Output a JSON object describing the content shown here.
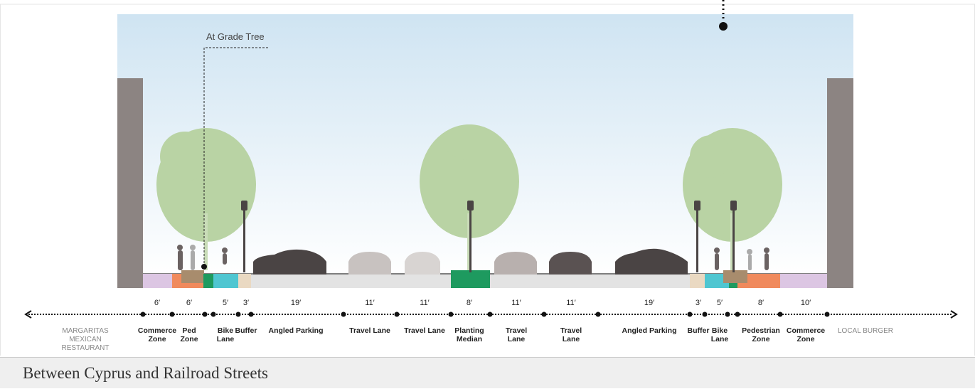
{
  "callout": "At Grade Tree",
  "segments": [
    {
      "width": "6′",
      "label": "Commerce Zone"
    },
    {
      "width": "6′",
      "label": "Ped Zone"
    },
    {
      "width": "5′",
      "label": "Bike Lane"
    },
    {
      "width": "3′",
      "label": "Buffer"
    },
    {
      "width": "19′",
      "label": "Angled Parking"
    },
    {
      "width": "11′",
      "label": "Travel Lane"
    },
    {
      "width": "11′",
      "label": "Travel Lane"
    },
    {
      "width": "8′",
      "label": "Planting Median"
    },
    {
      "width": "11′",
      "label": "Travel Lane"
    },
    {
      "width": "11′",
      "label": "Travel Lane"
    },
    {
      "width": "19′",
      "label": "Angled Parking"
    },
    {
      "width": "3′",
      "label": "Buffer"
    },
    {
      "width": "5′",
      "label": "Bike Lane"
    },
    {
      "width": "8′",
      "label": "Pedestrian Zone"
    },
    {
      "width": "10′",
      "label": "Commerce Zone"
    }
  ],
  "buildings": [
    "MARGARITAS MEXICAN RESTAURANT",
    "LOCAL BURGER"
  ],
  "caption": "Between Cyprus and Railroad Streets"
}
